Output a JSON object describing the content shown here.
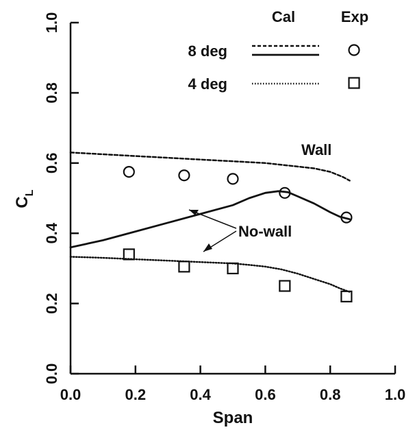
{
  "chart_data": {
    "type": "line",
    "title": "",
    "xlabel": "Span",
    "ylabel_main": "C",
    "ylabel_sub": "L",
    "xlim": [
      0.0,
      1.0
    ],
    "ylim": [
      0.0,
      1.0
    ],
    "xticks": [
      "0.0",
      "0.2",
      "0.4",
      "0.6",
      "0.8",
      "1.0"
    ],
    "yticks": [
      "0.0",
      "0.2",
      "0.4",
      "0.6",
      "0.8",
      "1.0"
    ],
    "grid": false,
    "legend": {
      "placement": "top-right",
      "header_cal": "Cal",
      "header_exp": "Exp",
      "rows": [
        {
          "label": "8 deg",
          "lines": [
            "dashed",
            "solid"
          ],
          "marker": "circle"
        },
        {
          "label": "4 deg",
          "lines": [
            "dotted"
          ],
          "marker": "square"
        }
      ]
    },
    "series": [
      {
        "kind": "calculated",
        "style": "dashed",
        "x": [
          0.0,
          0.1,
          0.2,
          0.3,
          0.4,
          0.5,
          0.6,
          0.7,
          0.75,
          0.8,
          0.84,
          0.86
        ],
        "y": [
          0.63,
          0.625,
          0.62,
          0.615,
          0.61,
          0.605,
          0.6,
          0.59,
          0.585,
          0.575,
          0.56,
          0.55
        ]
      },
      {
        "kind": "calculated",
        "style": "solid",
        "x": [
          0.0,
          0.1,
          0.2,
          0.3,
          0.4,
          0.5,
          0.55,
          0.6,
          0.64,
          0.67,
          0.7,
          0.75,
          0.8,
          0.83,
          0.86
        ],
        "y": [
          0.36,
          0.38,
          0.405,
          0.43,
          0.455,
          0.48,
          0.5,
          0.515,
          0.52,
          0.517,
          0.505,
          0.485,
          0.46,
          0.447,
          0.44
        ]
      },
      {
        "kind": "calculated",
        "style": "dotted",
        "x": [
          0.0,
          0.1,
          0.2,
          0.3,
          0.4,
          0.5,
          0.55,
          0.6,
          0.65,
          0.7,
          0.75,
          0.8,
          0.83,
          0.86
        ],
        "y": [
          0.333,
          0.33,
          0.326,
          0.322,
          0.318,
          0.314,
          0.31,
          0.305,
          0.297,
          0.285,
          0.27,
          0.255,
          0.243,
          0.233
        ]
      },
      {
        "kind": "experimental",
        "marker": "circle",
        "x": [
          0.18,
          0.35,
          0.5,
          0.66,
          0.85
        ],
        "y": [
          0.575,
          0.565,
          0.555,
          0.515,
          0.445
        ]
      },
      {
        "kind": "experimental",
        "marker": "square",
        "x": [
          0.18,
          0.35,
          0.5,
          0.66,
          0.85
        ],
        "y": [
          0.34,
          0.305,
          0.3,
          0.25,
          0.22
        ]
      }
    ],
    "annotations": [
      {
        "text": "Wall"
      },
      {
        "text": "No-wall"
      }
    ]
  }
}
